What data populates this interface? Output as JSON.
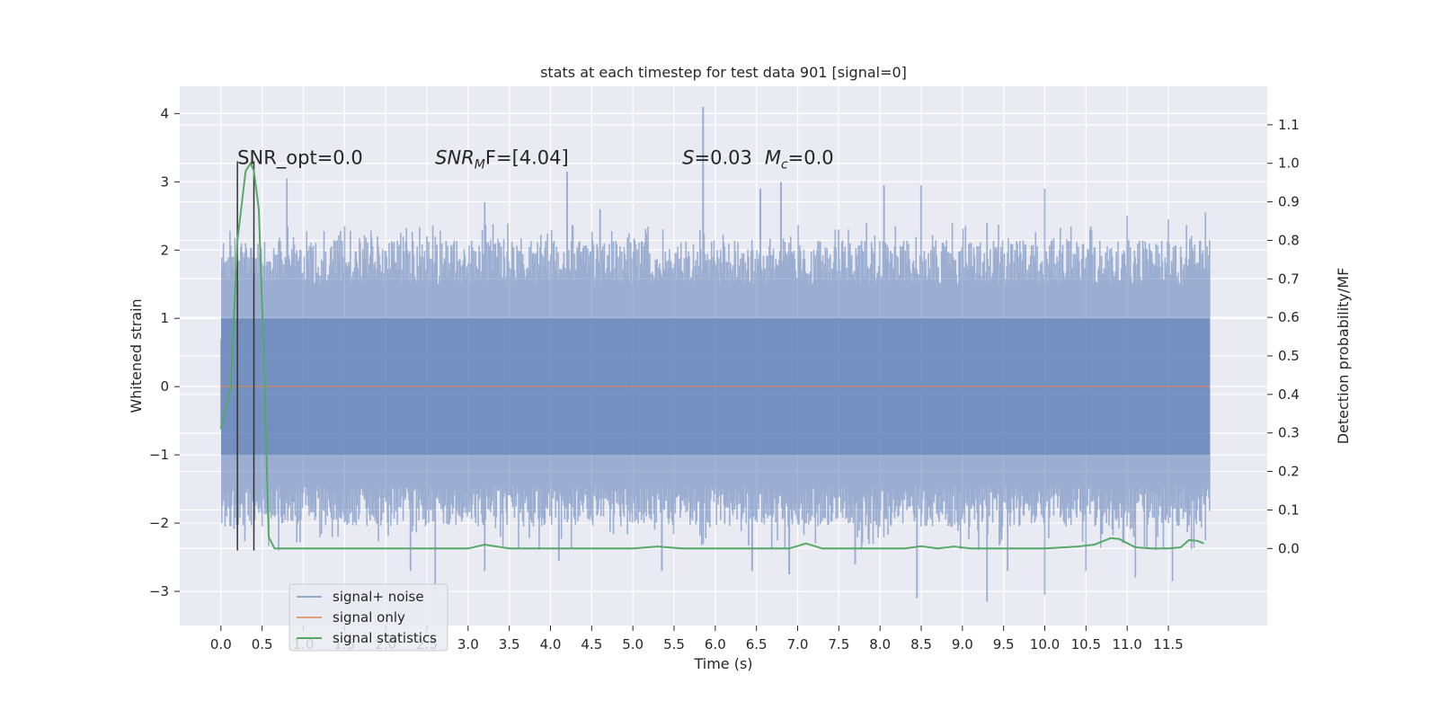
{
  "chart_data": {
    "type": "line",
    "title": "stats at each timestep for test data 901 [signal=0]",
    "xlabel": "Time (s)",
    "ylabel": "Whitened strain",
    "ylabel_right": "Detection probability/MF",
    "xlim": [
      -0.5,
      12.7
    ],
    "ylim": [
      -3.5,
      4.4
    ],
    "ylim_right": [
      -0.2,
      1.2
    ],
    "x_ticks": [
      "0.0",
      "0.5",
      "1.0",
      "1.5",
      "2.0",
      "2.5",
      "3.0",
      "3.5",
      "4.0",
      "4.5",
      "5.0",
      "5.5",
      "6.0",
      "6.5",
      "7.0",
      "7.5",
      "8.0",
      "8.5",
      "9.0",
      "9.5",
      "10.0",
      "10.5",
      "11.0",
      "11.5"
    ],
    "y_ticks": [
      "−3",
      "−2",
      "−1",
      "0",
      "1",
      "2",
      "3",
      "4"
    ],
    "y_ticks_right": [
      "0.0",
      "0.1",
      "0.2",
      "0.3",
      "0.4",
      "0.5",
      "0.6",
      "0.7",
      "0.8",
      "0.9",
      "1.0",
      "1.1"
    ],
    "grid": true,
    "legend_placement": "lower-left",
    "colors": {
      "noise": "#4c72b0",
      "signal": "#dd8452",
      "stats": "#55a868",
      "background": "#eaeaf2",
      "markers": "#333333"
    },
    "series": [
      {
        "name": "signal+ noise",
        "kind": "noise-band",
        "x_range": [
          0.0,
          12.0
        ],
        "peaks_up": [
          [
            0.1,
            1.6
          ],
          [
            0.3,
            2.1
          ],
          [
            0.8,
            3.05
          ],
          [
            1.9,
            2.2
          ],
          [
            2.5,
            2.2
          ],
          [
            3.2,
            2.7
          ],
          [
            4.2,
            3.15
          ],
          [
            4.6,
            2.6
          ],
          [
            5.85,
            4.1
          ],
          [
            6.55,
            2.9
          ],
          [
            6.8,
            3.0
          ],
          [
            7.5,
            2.3
          ],
          [
            8.05,
            2.95
          ],
          [
            8.5,
            2.95
          ],
          [
            9.3,
            2.4
          ],
          [
            10.0,
            2.9
          ],
          [
            10.55,
            2.3
          ],
          [
            11.0,
            2.5
          ],
          [
            11.5,
            2.45
          ],
          [
            11.95,
            2.55
          ]
        ],
        "peaks_down": [
          [
            0.05,
            -2.05
          ],
          [
            0.7,
            -2.4
          ],
          [
            2.3,
            -2.7
          ],
          [
            2.6,
            -3.0
          ],
          [
            3.2,
            -2.7
          ],
          [
            4.1,
            -2.55
          ],
          [
            5.35,
            -2.7
          ],
          [
            6.45,
            -2.7
          ],
          [
            6.9,
            -2.75
          ],
          [
            7.7,
            -2.6
          ],
          [
            8.45,
            -3.1
          ],
          [
            9.3,
            -3.15
          ],
          [
            9.55,
            -2.7
          ],
          [
            10.0,
            -3.05
          ],
          [
            10.5,
            -2.7
          ],
          [
            11.1,
            -2.8
          ],
          [
            11.55,
            -2.85
          ],
          [
            11.95,
            -2.25
          ]
        ]
      },
      {
        "name": "signal only",
        "x": [
          0.0,
          12.0
        ],
        "y": [
          0.0,
          0.0
        ]
      },
      {
        "name": "signal statistics",
        "axis": "right",
        "x": [
          0.0,
          0.12,
          0.2,
          0.3,
          0.36,
          0.4,
          0.46,
          0.52,
          0.58,
          0.65,
          1.0,
          2.5,
          3.0,
          3.2,
          3.5,
          4.0,
          5.0,
          5.3,
          5.6,
          6.0,
          6.5,
          6.9,
          7.1,
          7.3,
          7.6,
          8.0,
          8.3,
          8.5,
          8.7,
          8.9,
          9.1,
          9.5,
          10.0,
          10.4,
          10.6,
          10.8,
          10.9,
          11.1,
          11.3,
          11.5,
          11.65,
          11.75,
          11.85,
          11.93
        ],
        "y": [
          0.31,
          0.42,
          0.8,
          0.98,
          1.0,
          0.98,
          0.88,
          0.5,
          0.03,
          0.0,
          0.0,
          0.0,
          0.0,
          0.01,
          0.0,
          0.0,
          0.0,
          0.005,
          0.0,
          0.0,
          0.0,
          0.0,
          0.013,
          0.0,
          0.0,
          0.0,
          0.0,
          0.006,
          0.0,
          0.005,
          0.0,
          0.0,
          0.0,
          0.005,
          0.01,
          0.027,
          0.025,
          0.003,
          0.0,
          0.0,
          0.003,
          0.022,
          0.02,
          0.013
        ]
      }
    ],
    "markers_x": [
      0.2,
      0.4
    ],
    "annotations": [
      {
        "text": "SNR_opt=0.0",
        "x": 0.2,
        "y": 3.35
      },
      {
        "parts": [
          "SNR",
          "M",
          "F=[4.04]"
        ],
        "x": 2.6,
        "y": 3.35
      },
      {
        "parts": [
          "S",
          "=0.03"
        ],
        "x": 5.6,
        "y": 3.35
      },
      {
        "parts": [
          "M",
          "c",
          "=0.0"
        ],
        "x": 6.6,
        "y": 3.35
      }
    ],
    "legend": {
      "entries": [
        "signal+ noise",
        "signal only",
        "signal statistics"
      ]
    }
  }
}
